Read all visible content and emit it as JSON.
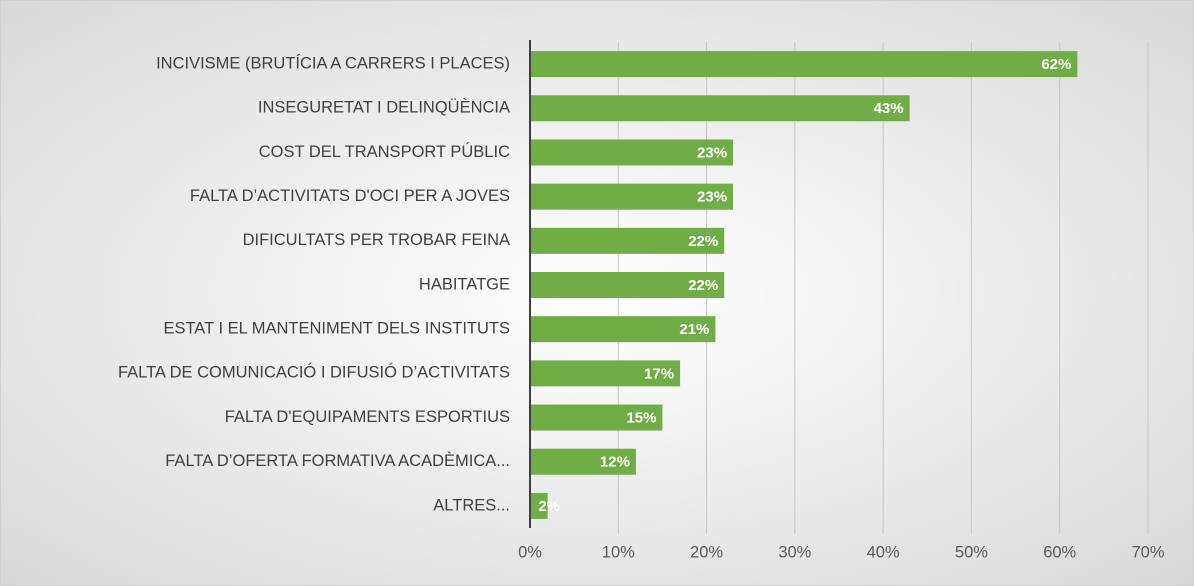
{
  "chart_data": {
    "type": "hbar",
    "categories": [
      "INCIVISME (BRUTÍCIA A CARRERS I PLACES)",
      "INSEGURETAT I DELINQÜÈNCIA",
      "COST DEL TRANSPORT PÚBLIC",
      "FALTA D’ACTIVITATS D'OCI PER A JOVES",
      "DIFICULTATS PER TROBAR FEINA",
      "HABITATGE",
      "ESTAT I EL MANTENIMENT DELS INSTITUTS",
      "FALTA DE COMUNICACIÓ I DIFUSIÓ D’ACTIVITATS",
      "FALTA D'EQUIPAMENTS ESPORTIUS",
      "FALTA D’OFERTA FORMATIVA ACADÈMICA...",
      "ALTRES..."
    ],
    "values": [
      62,
      43,
      23,
      23,
      22,
      22,
      21,
      17,
      15,
      12,
      2
    ],
    "value_labels": [
      "62%",
      "43%",
      "23%",
      "23%",
      "22%",
      "22%",
      "21%",
      "17%",
      "15%",
      "12%",
      "2%"
    ],
    "color": "#70ad47",
    "xlim": [
      0,
      70
    ],
    "xticks": [
      {
        "value": 0,
        "label": "0%"
      },
      {
        "value": 10,
        "label": "10%"
      },
      {
        "value": 20,
        "label": "20%"
      },
      {
        "value": 30,
        "label": "30%"
      },
      {
        "value": 40,
        "label": "40%"
      },
      {
        "value": 50,
        "label": "50%"
      },
      {
        "value": 60,
        "label": "60%"
      },
      {
        "value": 70,
        "label": "70%"
      }
    ],
    "grid": true
  }
}
